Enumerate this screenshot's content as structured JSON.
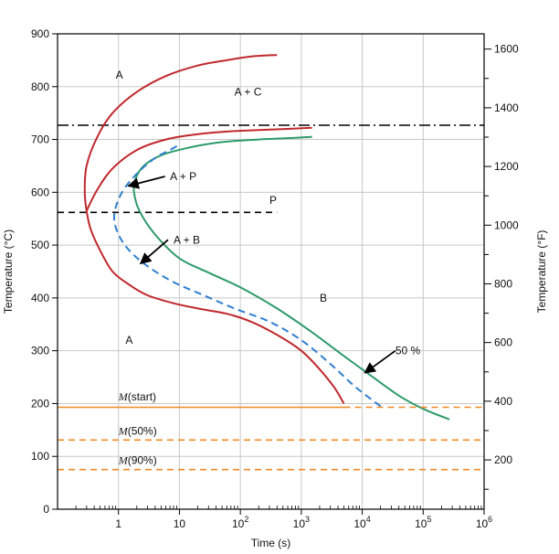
{
  "chart_data": {
    "type": "line",
    "title": "",
    "xlabel": "Time (s)",
    "ylabel": "Temperature (°C)",
    "ylabel_right": "Temperature (°F)",
    "x_scale": "log",
    "xlim": [
      0.1,
      1000000
    ],
    "ylim": [
      0,
      900
    ],
    "x_tick_labels": [
      {
        "value": 1,
        "label": "1"
      },
      {
        "value": 10,
        "label": "10"
      },
      {
        "value": 100,
        "label": "10",
        "sup": "2"
      },
      {
        "value": 1000,
        "label": "10",
        "sup": "3"
      },
      {
        "value": 10000,
        "label": "10",
        "sup": "4"
      },
      {
        "value": 100000,
        "label": "10",
        "sup": "5"
      },
      {
        "value": 1000000,
        "label": "10",
        "sup": "6"
      }
    ],
    "y_ticks": [
      0,
      100,
      200,
      300,
      400,
      500,
      600,
      700,
      800,
      900
    ],
    "right_ticks_F": [
      200,
      400,
      600,
      800,
      1000,
      1200,
      1400,
      1600
    ],
    "grid": true,
    "colors": {
      "start": "#c0282d",
      "finish": "#2e9a6b",
      "fifty": "#2f7fd0",
      "martensite": "#f08a24",
      "eutectoid": "#000000",
      "grid": "#c8c8c8"
    },
    "series": [
      {
        "role": "start",
        "style": "solid",
        "x": [
          5000,
          3500,
          2000,
          1000,
          400,
          150,
          60,
          20,
          8,
          3,
          1.5,
          0.8,
          0.5,
          0.35,
          0.3,
          0.28,
          0.3,
          0.45,
          0.8,
          2,
          6,
          20,
          60,
          150,
          400
        ],
        "y": [
          200,
          230,
          265,
          300,
          330,
          355,
          370,
          380,
          390,
          405,
          425,
          450,
          490,
          530,
          565,
          600,
          650,
          705,
          750,
          790,
          820,
          840,
          850,
          857,
          860
        ]
      },
      {
        "role": "start",
        "style": "solid",
        "x": [
          0.3,
          0.45,
          0.8,
          2,
          6,
          20,
          60,
          200,
          600,
          1500
        ],
        "y": [
          565,
          605,
          645,
          680,
          700,
          710,
          715,
          718,
          720,
          722
        ]
      },
      {
        "role": "finish",
        "style": "solid",
        "x": [
          270000,
          100000,
          40000,
          15000,
          5000,
          1500,
          400,
          100,
          30,
          10,
          4,
          2.2,
          1.8,
          1.9,
          2.6,
          5,
          15,
          50,
          200,
          800,
          1500
        ],
        "y": [
          170,
          190,
          215,
          250,
          290,
          335,
          380,
          420,
          448,
          475,
          520,
          565,
          600,
          625,
          650,
          670,
          685,
          695,
          700,
          703,
          705
        ]
      },
      {
        "role": "fifty",
        "style": "dashed",
        "x": [
          20000,
          8000,
          3000,
          1000,
          300,
          80,
          25,
          8,
          3,
          1.5,
          1.0,
          0.85,
          0.95,
          1.3,
          2.2,
          4,
          7,
          10
        ],
        "y": [
          195,
          230,
          275,
          320,
          355,
          380,
          405,
          430,
          460,
          490,
          520,
          550,
          580,
          610,
          640,
          665,
          680,
          690
        ]
      },
      {
        "role": "eutectoid",
        "style": "dashdot",
        "x": [
          0.1,
          1000000
        ],
        "y": [
          727,
          727
        ]
      },
      {
        "role": "pearlite_limit",
        "style": "dashed",
        "x": [
          0.1,
          400
        ],
        "y": [
          562,
          562
        ]
      },
      {
        "role": "m_start",
        "style": "solid",
        "x": [
          0.1,
          5000
        ],
        "y": [
          193,
          193
        ]
      },
      {
        "role": "m_start_ext",
        "style": "dashed",
        "x": [
          5000,
          1000000
        ],
        "y": [
          193,
          193
        ]
      },
      {
        "role": "m_50",
        "style": "dashed",
        "x": [
          0.1,
          1000000
        ],
        "y": [
          131,
          131
        ]
      },
      {
        "role": "m_90",
        "style": "dashed",
        "x": [
          0.1,
          1000000
        ],
        "y": [
          75,
          75
        ]
      }
    ],
    "annotations": [
      {
        "text": "A",
        "x": 0.9,
        "y": 822
      },
      {
        "text": "A + C",
        "x": 80,
        "y": 790
      },
      {
        "text": "A + P",
        "x": 7,
        "y": 630
      },
      {
        "text": "P",
        "x": 300,
        "y": 585
      },
      {
        "text": "A + B",
        "x": 8,
        "y": 510
      },
      {
        "text": "B",
        "x": 2000,
        "y": 400
      },
      {
        "text": "A",
        "x": 1.3,
        "y": 320
      },
      {
        "text": "50 %",
        "x": 35000,
        "y": 300
      }
    ],
    "arrows": [
      {
        "from_x": 5.8,
        "from_y": 630,
        "to_x": 1.45,
        "to_y": 612
      },
      {
        "from_x": 6.5,
        "from_y": 510,
        "to_x": 2.3,
        "to_y": 465
      },
      {
        "from_x": 35000,
        "from_y": 300,
        "to_x": 11000,
        "to_y": 258
      }
    ],
    "m_labels": [
      {
        "text": "M(start)",
        "x": 1.0,
        "y": 213
      },
      {
        "text": "M(50%)",
        "x": 1.0,
        "y": 148
      },
      {
        "text": "M(90%)",
        "x": 1.0,
        "y": 93
      }
    ]
  }
}
